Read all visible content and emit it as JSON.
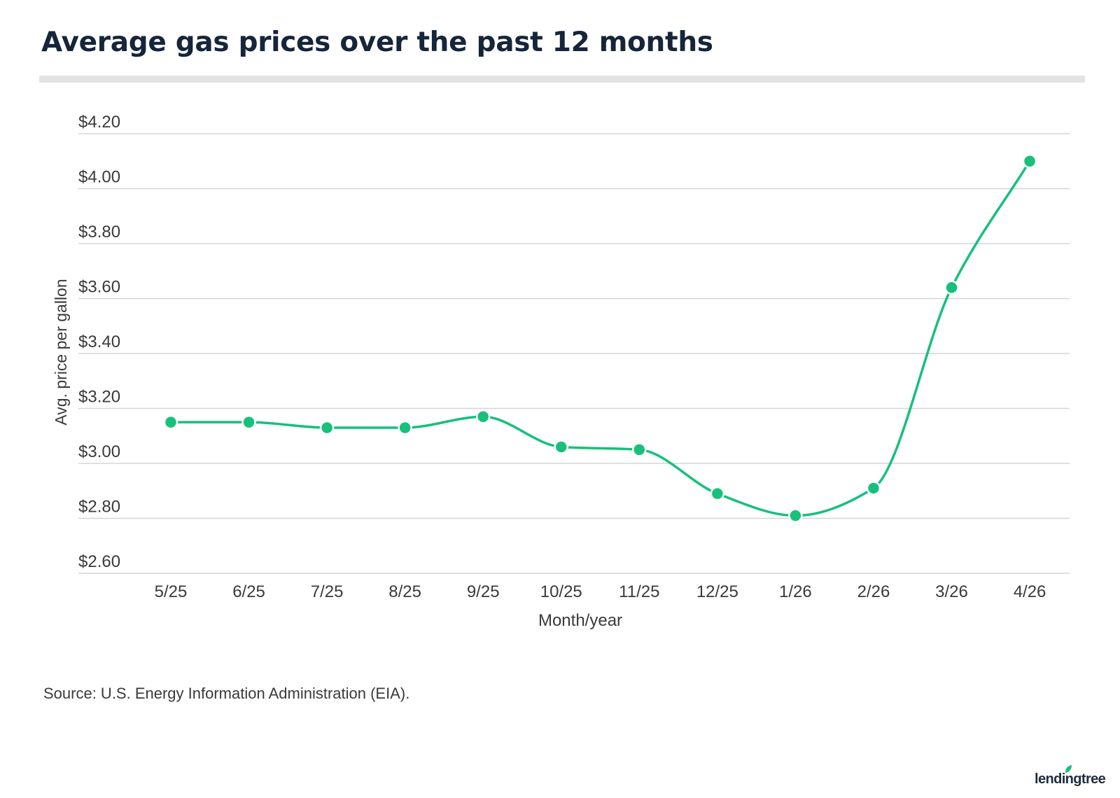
{
  "chart_data": {
    "type": "line",
    "title": "Average gas prices over the past 12 months",
    "xlabel": "Month/year",
    "ylabel": "Avg. price per gallon",
    "categories": [
      "5/25",
      "6/25",
      "7/25",
      "8/25",
      "9/25",
      "10/25",
      "11/25",
      "12/25",
      "1/26",
      "2/26",
      "3/26",
      "4/26"
    ],
    "series": [
      {
        "values": [
          3.15,
          3.15,
          3.13,
          3.13,
          3.17,
          3.06,
          3.05,
          2.89,
          2.81,
          2.91,
          3.64,
          4.1
        ]
      }
    ],
    "ylim": [
      2.6,
      4.2
    ],
    "yticks": [
      "$4.20",
      "$4.00",
      "$3.80",
      "$3.60",
      "$3.40",
      "$3.20",
      "$3.00",
      "$2.80",
      "$2.60"
    ],
    "ytick_values": [
      4.2,
      4.0,
      3.8,
      3.6,
      3.4,
      3.2,
      3.0,
      2.8,
      2.6
    ],
    "grid": "horizontal",
    "line_style": "smooth",
    "markers": true,
    "legend": "none",
    "colors": {
      "line": "#17c07b",
      "grid": "#d6d6d6",
      "tick_text": "#3a3a3a"
    }
  },
  "source": "Source: U.S. Energy Information Administration (EIA).",
  "brand": {
    "logo_text": "lendingtree",
    "leaf_color": "#17c07b"
  }
}
